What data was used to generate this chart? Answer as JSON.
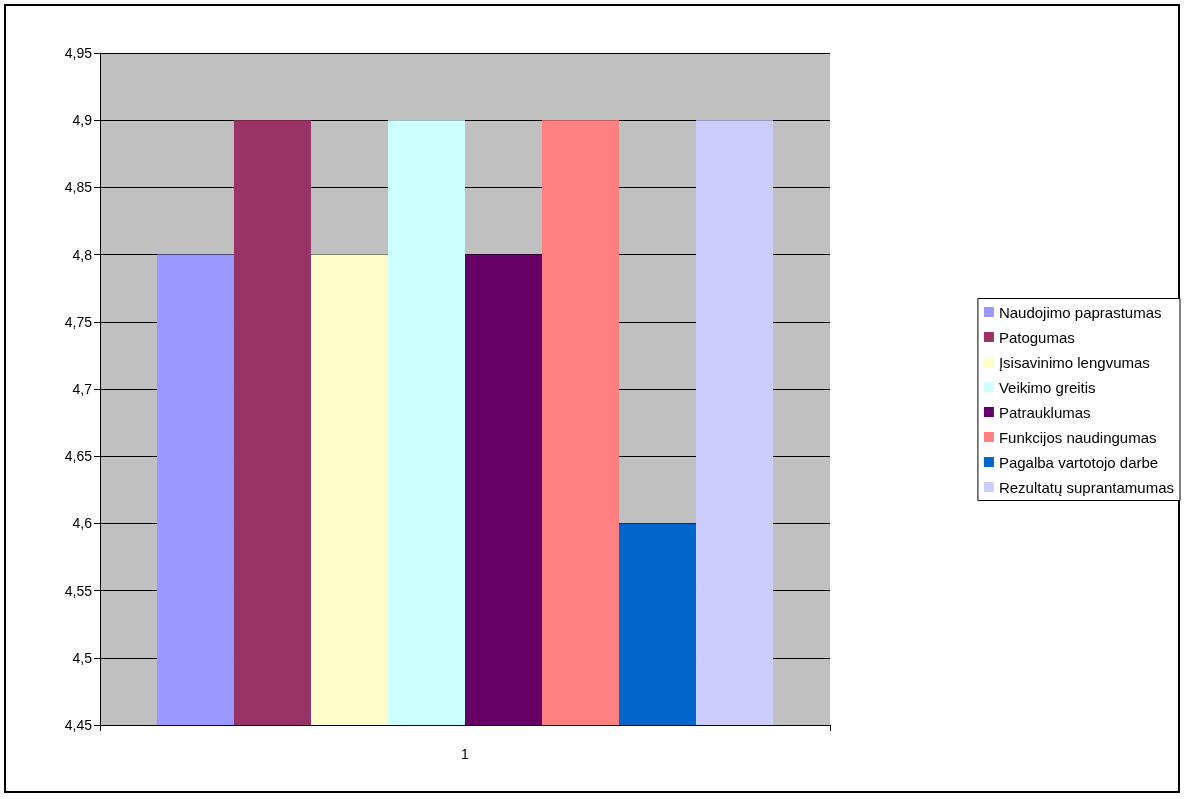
{
  "chart_data": {
    "type": "bar",
    "categories": [
      "1"
    ],
    "series": [
      {
        "name": "Naudojimo paprastumas",
        "color": "#9999ff",
        "values": [
          4.8
        ]
      },
      {
        "name": "Patogumas",
        "color": "#993366",
        "values": [
          4.9
        ]
      },
      {
        "name": "Įsisavinimo lengvumas",
        "color": "#ffffcc",
        "values": [
          4.8
        ]
      },
      {
        "name": "Veikimo greitis",
        "color": "#ccffff",
        "values": [
          4.9
        ]
      },
      {
        "name": "Patrauklumas",
        "color": "#660066",
        "values": [
          4.8
        ]
      },
      {
        "name": "Funkcijos naudingumas",
        "color": "#ff8080",
        "values": [
          4.9
        ]
      },
      {
        "name": "Pagalba vartotojo darbe",
        "color": "#0066cc",
        "values": [
          4.6
        ]
      },
      {
        "name": "Rezultatų suprantamumas",
        "color": "#ccccff",
        "values": [
          4.9
        ]
      }
    ],
    "ylim": [
      4.45,
      4.95
    ],
    "yticks": [
      {
        "value": 4.45,
        "label": "4,45"
      },
      {
        "value": 4.5,
        "label": "4,5"
      },
      {
        "value": 4.55,
        "label": "4,55"
      },
      {
        "value": 4.6,
        "label": "4,6"
      },
      {
        "value": 4.65,
        "label": "4,65"
      },
      {
        "value": 4.7,
        "label": "4,7"
      },
      {
        "value": 4.75,
        "label": "4,75"
      },
      {
        "value": 4.8,
        "label": "4,8"
      },
      {
        "value": 4.85,
        "label": "4,85"
      },
      {
        "value": 4.9,
        "label": "4,9"
      },
      {
        "value": 4.95,
        "label": "4,95"
      }
    ],
    "grid": "y",
    "legend": "right"
  }
}
